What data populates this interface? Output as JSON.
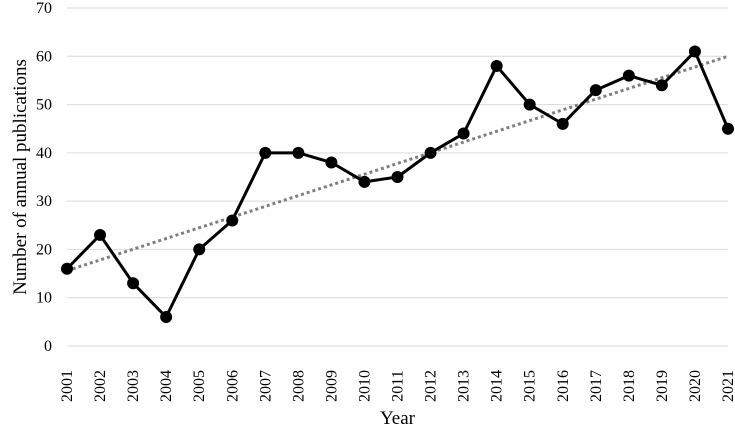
{
  "chart_data": {
    "type": "line",
    "xlabel": "Year",
    "ylabel": "Number of annual publications",
    "ylim": [
      0,
      70
    ],
    "yticks": [
      0,
      10,
      20,
      30,
      40,
      50,
      60,
      70
    ],
    "grid": true,
    "trendline": {
      "style": "dotted",
      "from": 15.6,
      "to": 60.0
    },
    "categories": [
      "2001",
      "2002",
      "2003",
      "2004",
      "2005",
      "2006",
      "2007",
      "2008",
      "2009",
      "2010",
      "2011",
      "2012",
      "2013",
      "2014",
      "2015",
      "2016",
      "2017",
      "2018",
      "2019",
      "2020",
      "2021"
    ],
    "series": [
      {
        "values": [
          16,
          23,
          13,
          6,
          20,
          26,
          40,
          40,
          38,
          34,
          35,
          40,
          44,
          58,
          50,
          46,
          53,
          56,
          54,
          61,
          45
        ]
      }
    ],
    "colors": {
      "line": "#000000",
      "marker": "#000000",
      "trend": "#7f7f7f",
      "grid": "#d9d9d9"
    }
  }
}
